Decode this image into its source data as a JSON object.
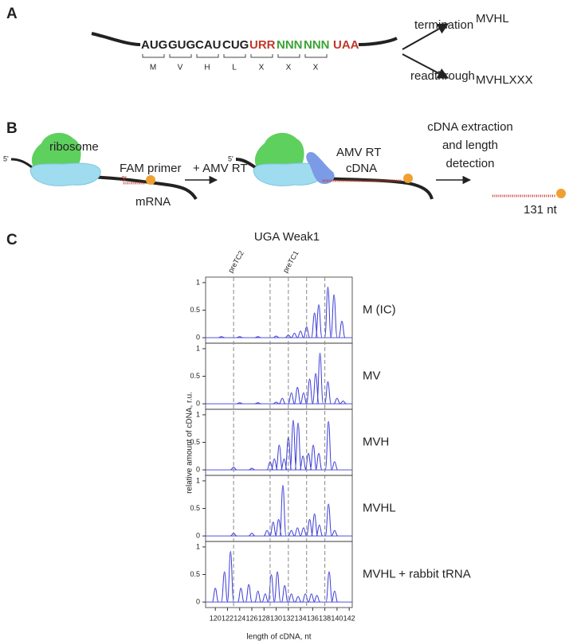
{
  "panel_a": {
    "label": "A",
    "codons": [
      "AUG",
      "GUG",
      "CAU",
      "CUG",
      "URR",
      "NNN",
      "NNN",
      "UAA"
    ],
    "amino_acids": [
      "M",
      "V",
      "H",
      "L",
      "X",
      "X",
      "X"
    ],
    "termination": "termination",
    "readthrough": "readthrough",
    "product_termination": "MVHL",
    "product_readthrough": "MVHLXXX"
  },
  "panel_b": {
    "label": "B",
    "five_prime_1": "5'",
    "ribosome": "ribosome",
    "primer": "FAM primer",
    "three_prime": "3'",
    "mrna": "mRNA",
    "step_1": "+ AMV RT",
    "five_prime_2": "5'",
    "enzyme": "AMV RT",
    "cdna": "cDNA",
    "step_2": [
      "cDNA extraction",
      "and length",
      "detection"
    ],
    "length": "131 nt"
  },
  "chart_data": {
    "type": "peaks",
    "label": "C",
    "title": "UGA Weak1",
    "x_label": "length of cDNA, nt",
    "y_label": "relative amount of cDNA,  r.u.",
    "color": "#3b3bd9",
    "xlim": [
      118.4,
      142.5
    ],
    "xticks": [
      120,
      122,
      124,
      126,
      128,
      130,
      132,
      134,
      136,
      138,
      140,
      142
    ],
    "guide_x": [
      123,
      129,
      132,
      135,
      138
    ],
    "annotations": [
      {
        "text": "preTC2",
        "x": 123
      },
      {
        "text": "preTC1",
        "x": 132
      }
    ],
    "panels": [
      {
        "name": "M (IC)",
        "ylim": [
          -0.1,
          1.1
        ],
        "yticks": [
          0,
          0.5,
          1
        ],
        "x": [
          121,
          124,
          127,
          130,
          132,
          133,
          134,
          135,
          136.3,
          137,
          138.5,
          139.5,
          140.8
        ],
        "values": [
          0.02,
          0.02,
          0.02,
          0.03,
          0.05,
          0.08,
          0.12,
          0.2,
          0.45,
          0.6,
          0.92,
          0.78,
          0.3
        ]
      },
      {
        "name": "MV",
        "ylim": [
          -0.1,
          1.1
        ],
        "yticks": [
          0,
          0.5,
          1
        ],
        "x": [
          124,
          127,
          130,
          131,
          132.5,
          133.5,
          134.5,
          135.5,
          136.5,
          137.2,
          138.5,
          140,
          141
        ],
        "values": [
          0.02,
          0.02,
          0.03,
          0.1,
          0.2,
          0.3,
          0.2,
          0.45,
          0.55,
          0.92,
          0.4,
          0.1,
          0.05
        ]
      },
      {
        "name": "MVH",
        "ylim": [
          -0.1,
          1.1
        ],
        "yticks": [
          0,
          0.5,
          1
        ],
        "x": [
          123,
          126,
          129,
          129.7,
          130.5,
          131.3,
          132,
          132.8,
          133.6,
          134.4,
          135.3,
          136.1,
          137,
          138.6,
          139.6
        ],
        "values": [
          0.05,
          0.03,
          0.15,
          0.2,
          0.45,
          0.2,
          0.6,
          0.9,
          0.85,
          0.25,
          0.3,
          0.45,
          0.3,
          0.88,
          0.15
        ]
      },
      {
        "name": "MVHL",
        "ylim": [
          -0.1,
          1.1
        ],
        "yticks": [
          0,
          0.5,
          1
        ],
        "x": [
          123,
          126,
          128.5,
          129.5,
          130.4,
          131.1,
          132.5,
          133.5,
          134.5,
          135.5,
          136.3,
          137.1,
          138.6,
          139.6
        ],
        "values": [
          0.05,
          0.05,
          0.1,
          0.25,
          0.3,
          0.92,
          0.1,
          0.15,
          0.15,
          0.3,
          0.4,
          0.2,
          0.58,
          0.1
        ]
      },
      {
        "name": "MVHL + rabbit tRNA",
        "ylim": [
          -0.1,
          1.1
        ],
        "yticks": [
          0,
          0.5,
          1
        ],
        "x": [
          120,
          121.5,
          122.5,
          124.2,
          125.5,
          127,
          128.2,
          129.2,
          130.2,
          131.4,
          132.5,
          133.6,
          134.8,
          135.8,
          136.7,
          138.7,
          139.6
        ],
        "values": [
          0.25,
          0.55,
          0.92,
          0.25,
          0.32,
          0.2,
          0.15,
          0.5,
          0.55,
          0.3,
          0.15,
          0.1,
          0.15,
          0.15,
          0.12,
          0.55,
          0.2
        ]
      }
    ]
  }
}
